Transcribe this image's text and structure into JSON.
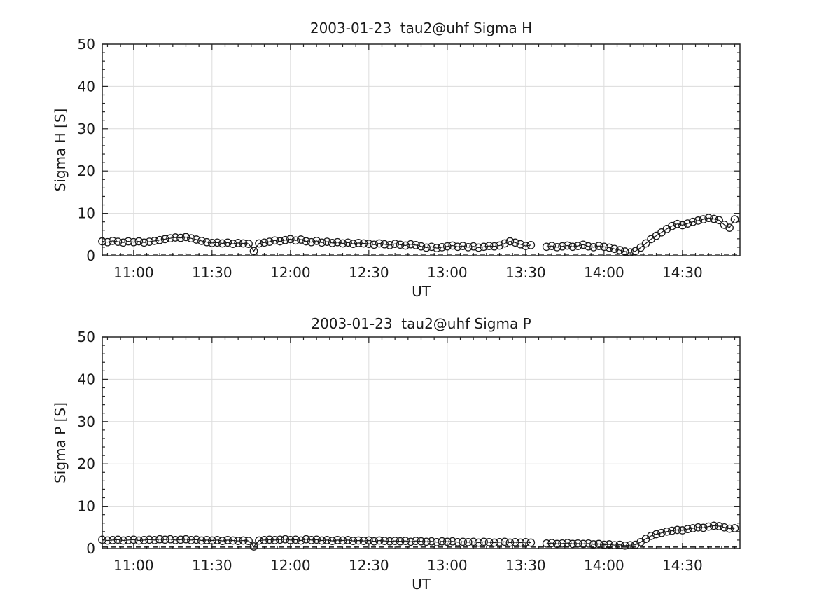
{
  "figure": {
    "background": "#ffffff",
    "axis_color": "#262626",
    "grid_color": "#dcdcdc",
    "line_color": "#1a1a1a",
    "marker": "open-circle"
  },
  "chart_data": [
    {
      "type": "line",
      "title": "2003-01-23  tau2@uhf Sigma H",
      "xlabel": "UT",
      "ylabel": "Sigma H [S]",
      "ylim": [
        0,
        50
      ],
      "yticks": [
        0,
        10,
        20,
        30,
        40,
        50
      ],
      "y_minor_step": 2,
      "grid": true,
      "legend": "none",
      "xlim_minutes": [
        648,
        892
      ],
      "xticks": [
        {
          "minute": 660,
          "label": "11:00"
        },
        {
          "minute": 690,
          "label": "11:30"
        },
        {
          "minute": 720,
          "label": "12:00"
        },
        {
          "minute": 750,
          "label": "12:30"
        },
        {
          "minute": 780,
          "label": "13:00"
        },
        {
          "minute": 810,
          "label": "13:30"
        },
        {
          "minute": 840,
          "label": "14:00"
        },
        {
          "minute": 870,
          "label": "14:30"
        }
      ],
      "x_minor_step_minutes": 5,
      "zero_ref_line": {
        "y": 0.35,
        "style": "dashed"
      },
      "x_start_minute": 648,
      "x_step_minutes": 2,
      "n_points": 122,
      "values": [
        3.4,
        3.2,
        3.5,
        3.3,
        3.1,
        3.4,
        3.2,
        3.4,
        3.1,
        3.3,
        3.5,
        3.7,
        3.9,
        4.1,
        4.3,
        4.2,
        4.4,
        4.1,
        3.8,
        3.5,
        3.2,
        3.0,
        3.1,
        2.9,
        3.1,
        2.8,
        3.0,
        2.9,
        2.8,
        1.1,
        2.9,
        3.1,
        3.3,
        3.6,
        3.4,
        3.7,
        3.9,
        3.6,
        3.8,
        3.4,
        3.2,
        3.5,
        3.1,
        3.3,
        3.0,
        3.2,
        2.9,
        3.1,
        2.8,
        3.0,
        2.9,
        2.8,
        2.6,
        2.9,
        2.7,
        2.5,
        2.8,
        2.6,
        2.4,
        2.7,
        2.5,
        2.2,
        1.9,
        2.1,
        1.8,
        2.0,
        2.2,
        2.4,
        2.1,
        2.3,
        2.0,
        2.2,
        1.9,
        2.1,
        2.3,
        2.2,
        2.4,
        2.9,
        3.4,
        3.1,
        2.7,
        2.3,
        2.5,
        null,
        null,
        2.1,
        2.3,
        2.0,
        2.2,
        2.4,
        2.1,
        2.3,
        2.6,
        2.2,
        2.0,
        2.3,
        2.1,
        1.9,
        1.6,
        1.3,
        1.0,
        0.8,
        1.1,
        1.9,
        2.9,
        3.9,
        4.7,
        5.5,
        6.3,
        7.0,
        7.5,
        7.2,
        7.6,
        8.0,
        8.3,
        8.6,
        8.9,
        8.7,
        8.4,
        7.3,
        6.6,
        8.6
      ]
    },
    {
      "type": "line",
      "title": "2003-01-23  tau2@uhf Sigma P",
      "xlabel": "UT",
      "ylabel": "Sigma P [S]",
      "ylim": [
        0,
        50
      ],
      "yticks": [
        0,
        10,
        20,
        30,
        40,
        50
      ],
      "y_minor_step": 2,
      "grid": true,
      "legend": "none",
      "xlim_minutes": [
        648,
        892
      ],
      "xticks": [
        {
          "minute": 660,
          "label": "11:00"
        },
        {
          "minute": 690,
          "label": "11:30"
        },
        {
          "minute": 720,
          "label": "12:00"
        },
        {
          "minute": 750,
          "label": "12:30"
        },
        {
          "minute": 780,
          "label": "13:00"
        },
        {
          "minute": 810,
          "label": "13:30"
        },
        {
          "minute": 840,
          "label": "14:00"
        },
        {
          "minute": 870,
          "label": "14:30"
        }
      ],
      "x_minor_step_minutes": 5,
      "zero_ref_line": {
        "y": 0.35,
        "style": "dashed"
      },
      "x_start_minute": 648,
      "x_step_minutes": 2,
      "n_points": 122,
      "values": [
        2.1,
        1.9,
        2.0,
        2.1,
        1.9,
        2.0,
        2.1,
        1.9,
        2.0,
        2.1,
        2.0,
        2.2,
        2.1,
        2.2,
        2.0,
        2.1,
        2.2,
        2.0,
        2.1,
        1.9,
        2.0,
        1.9,
        2.0,
        1.8,
        2.0,
        1.9,
        1.8,
        1.9,
        1.8,
        0.5,
        1.9,
        2.0,
        2.1,
        2.0,
        2.1,
        2.2,
        2.0,
        2.1,
        1.9,
        2.2,
        2.0,
        2.1,
        1.9,
        2.0,
        1.8,
        2.0,
        1.9,
        2.0,
        1.8,
        1.9,
        1.8,
        1.9,
        1.7,
        1.9,
        1.8,
        1.7,
        1.8,
        1.7,
        1.8,
        1.6,
        1.8,
        1.7,
        1.6,
        1.7,
        1.5,
        1.7,
        1.6,
        1.7,
        1.5,
        1.6,
        1.5,
        1.6,
        1.4,
        1.6,
        1.5,
        1.4,
        1.5,
        1.6,
        1.4,
        1.5,
        1.4,
        1.5,
        1.4,
        null,
        null,
        1.2,
        1.3,
        1.1,
        1.2,
        1.3,
        1.1,
        1.2,
        1.1,
        1.2,
        1.0,
        1.1,
        0.9,
        1.0,
        0.8,
        0.9,
        0.7,
        0.8,
        0.9,
        1.5,
        2.3,
        3.0,
        3.4,
        3.7,
        4.0,
        4.2,
        4.4,
        4.3,
        4.6,
        4.8,
        5.0,
        4.9,
        5.2,
        5.4,
        5.3,
        5.0,
        4.7,
        4.8
      ]
    }
  ]
}
